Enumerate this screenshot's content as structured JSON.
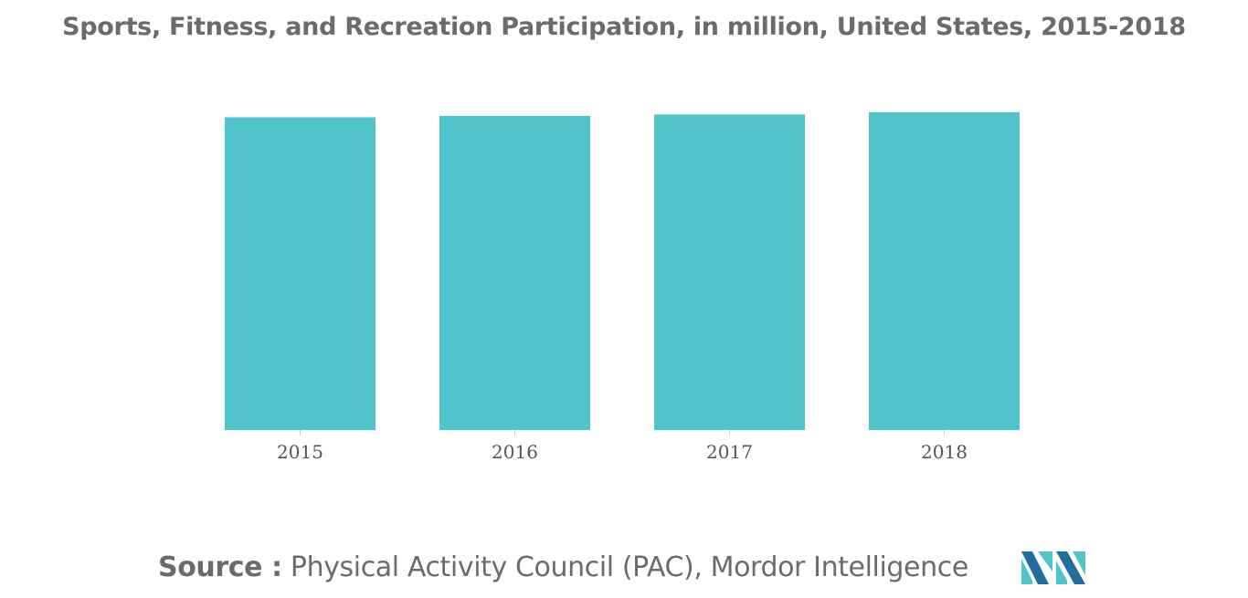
{
  "colors": {
    "bar": "#50c4ca",
    "title": "#6b6b6b",
    "axis": "#cccccc",
    "logo_dark": "#1f6e9e",
    "logo_light": "#50c4ca"
  },
  "chart_data": {
    "type": "bar",
    "title": "Sports, Fitness, and Recreation Participation, in million, United States, 2015-2018",
    "categories": [
      "2015",
      "2016",
      "2017",
      "2018"
    ],
    "values": [
      219,
      220,
      221,
      222.5
    ],
    "xlabel": "",
    "ylabel": "",
    "ylim": [
      0,
      222.5
    ],
    "grid": false,
    "legend": "none"
  },
  "footer": {
    "source_label": "Source :",
    "source_text": "Physical Activity Council (PAC), Mordor Intelligence"
  },
  "logo": {
    "icon": "mordor-intelligence-logo-icon"
  }
}
